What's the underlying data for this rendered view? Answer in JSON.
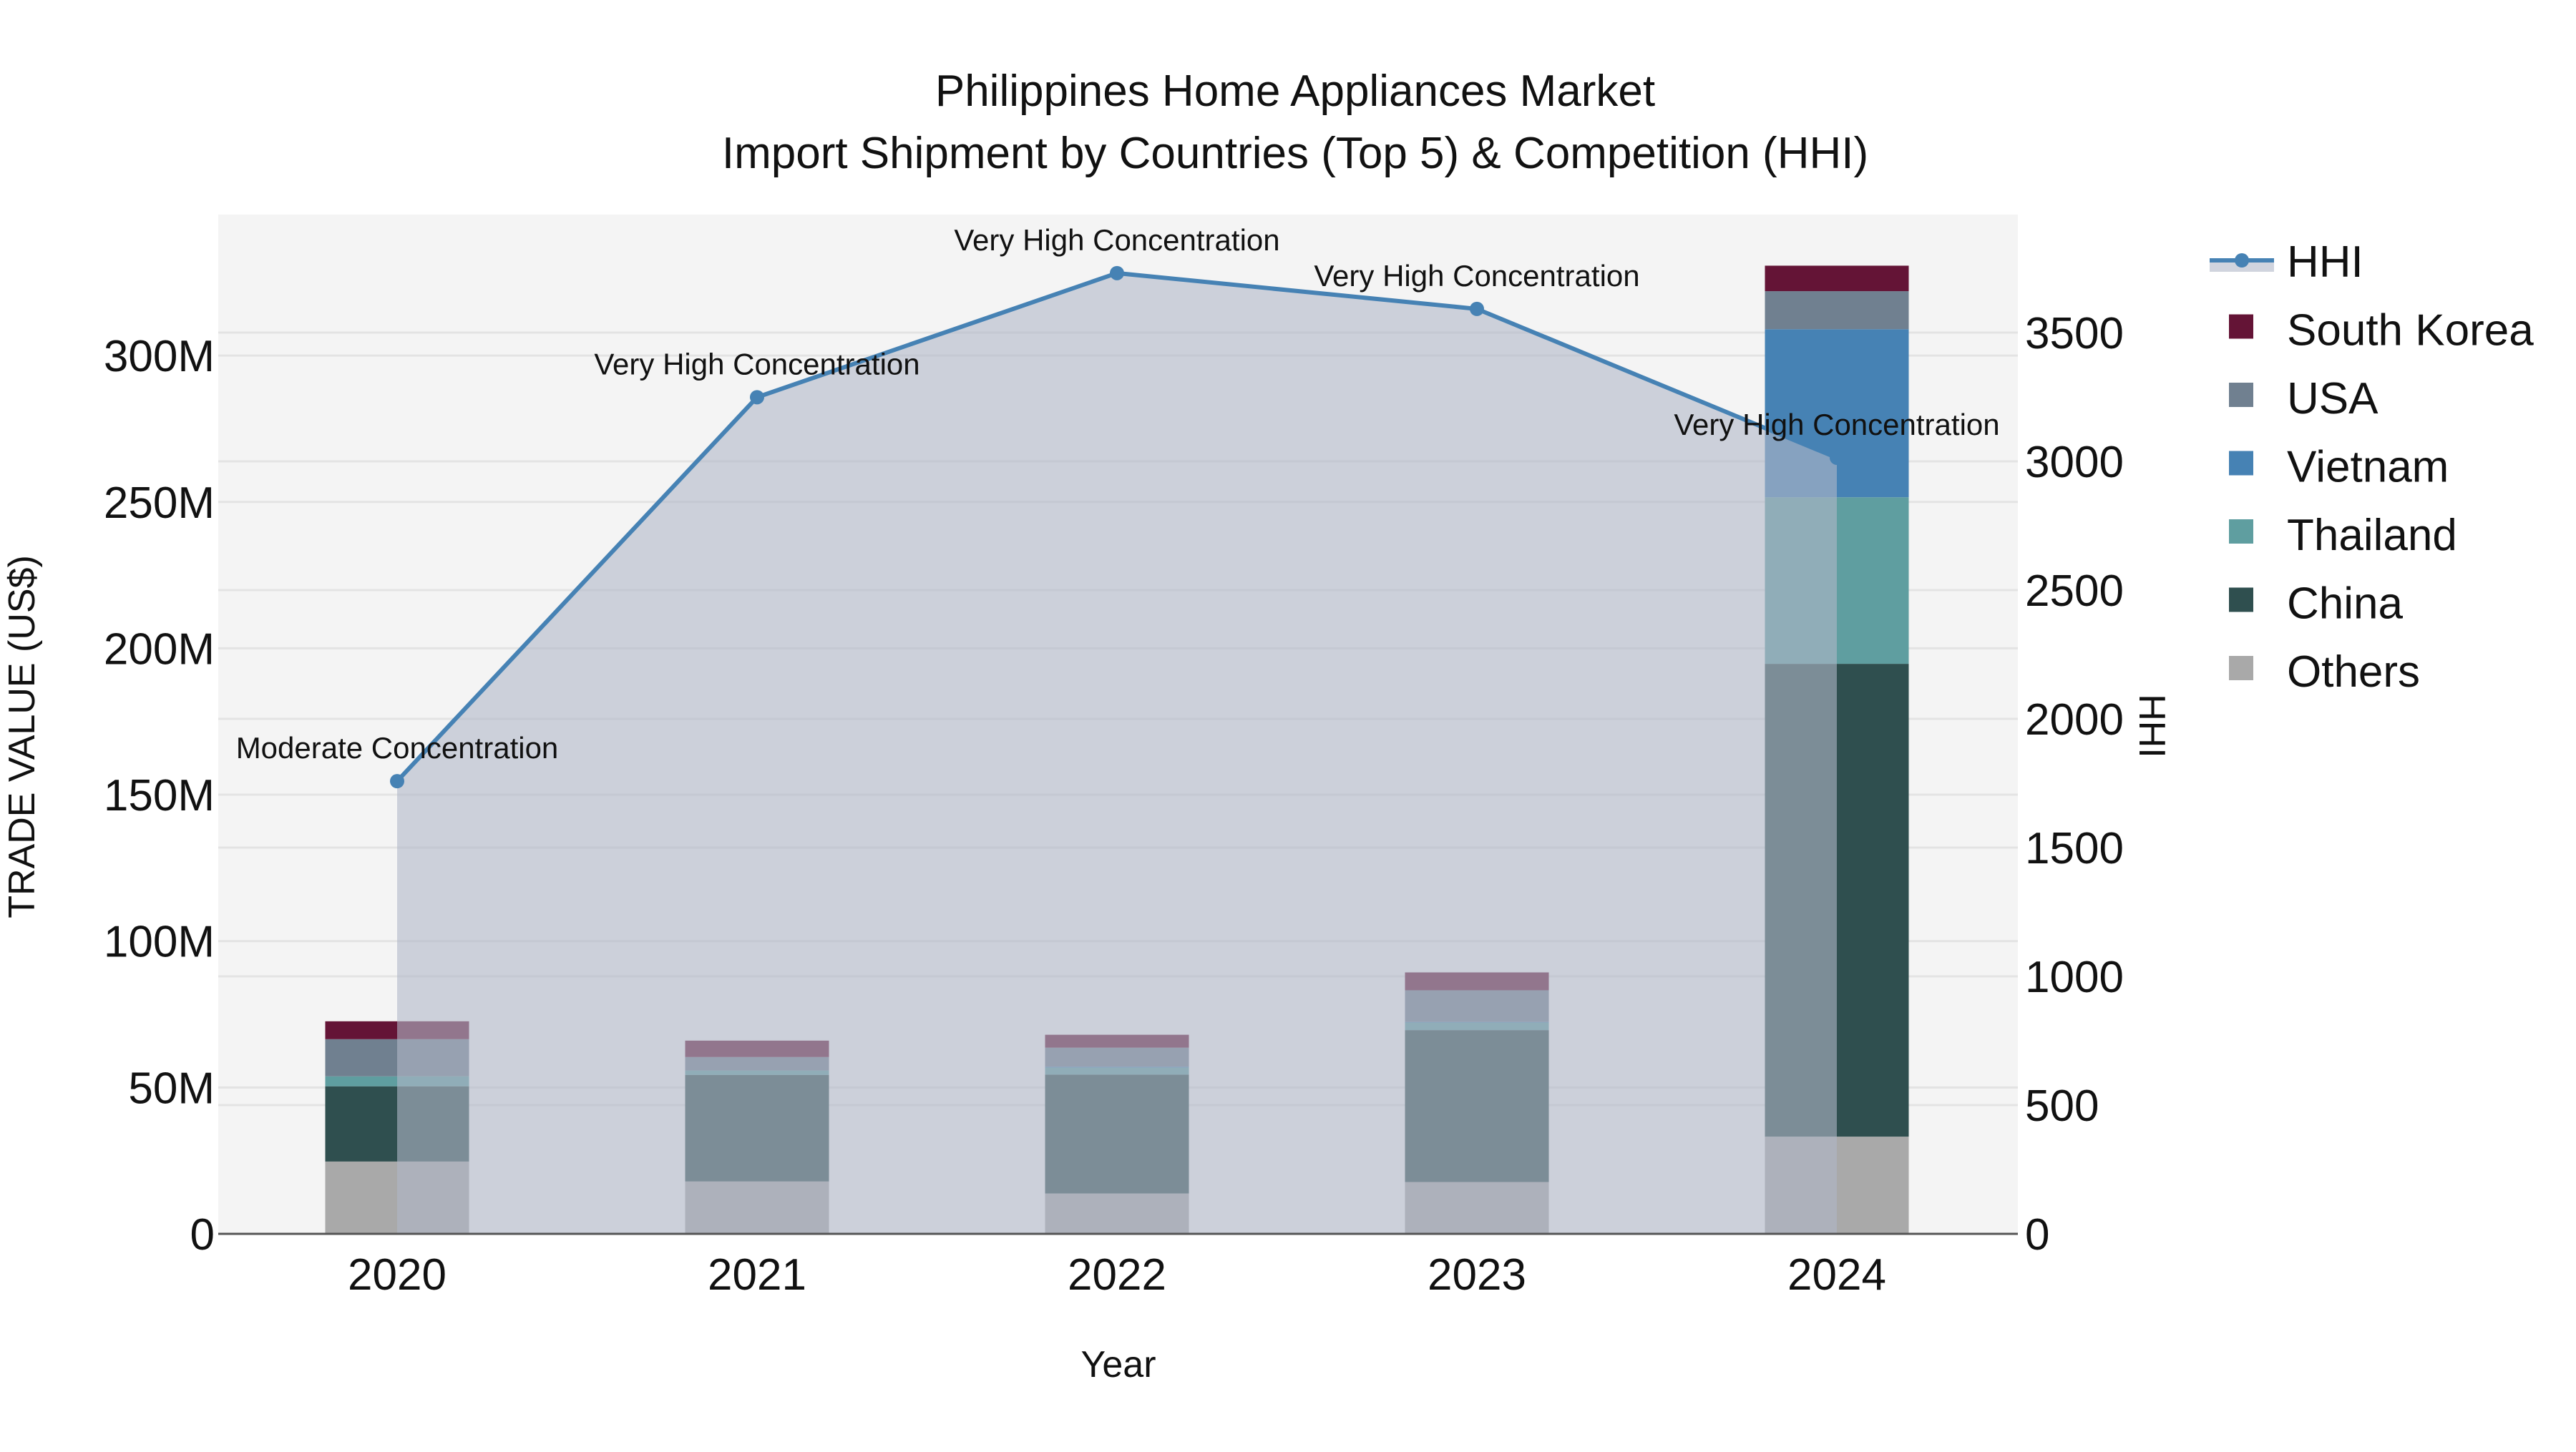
{
  "chart_data": {
    "type": "bar",
    "subtype": "stacked bar + line (secondary axis, area fill)",
    "title": "Philippines Home Appliances Market",
    "subtitle": "Import Shipment by Countries (Top 5) & Competition (HHI)",
    "xlabel": "Year",
    "ylabel": "TRADE VALUE (US$)",
    "y2label": "HHI",
    "categories": [
      "2020",
      "2021",
      "2022",
      "2023",
      "2024"
    ],
    "ylim": [
      0,
      346
    ],
    "y_unit": "M",
    "yticks": [
      0,
      50,
      100,
      150,
      200,
      250,
      300
    ],
    "ytick_labels": [
      "0",
      "50M",
      "100M",
      "150M",
      "200M",
      "250M",
      "300M"
    ],
    "y2lim": [
      0,
      3958
    ],
    "y2ticks": [
      0,
      500,
      1000,
      1500,
      2000,
      2500,
      3000,
      3500
    ],
    "y2tick_labels": [
      "0",
      "500",
      "1000",
      "1500",
      "2000",
      "2500",
      "3000",
      "3500"
    ],
    "grid": true,
    "legend_position": "right",
    "series": [
      {
        "name": "Others",
        "color": "#A9A9A9",
        "values": [
          24.7,
          17.9,
          13.8,
          17.7,
          33.2
        ]
      },
      {
        "name": "China",
        "color": "#2F4F4F",
        "values": [
          25.7,
          36.4,
          40.6,
          51.9,
          161.5
        ]
      },
      {
        "name": "Thailand",
        "color": "#5F9EA0",
        "values": [
          3.4,
          1.5,
          2.4,
          2.6,
          56.9
        ]
      },
      {
        "name": "Vietnam",
        "color": "#4682B4",
        "values": [
          0.0,
          0.0,
          0.3,
          0.2,
          57.4
        ]
      },
      {
        "name": "USA",
        "color": "#708090",
        "values": [
          12.7,
          4.6,
          6.5,
          10.8,
          13.0
        ]
      },
      {
        "name": "South Korea",
        "color": "#641436",
        "values": [
          6.1,
          5.6,
          4.4,
          6.1,
          8.7
        ]
      }
    ],
    "line_series": {
      "name": "HHI",
      "axis": "y2",
      "color": "#4682B4",
      "fill_color": "rgba(176,184,200,0.6)",
      "values": [
        1758,
        3249,
        3731,
        3592,
        3014
      ],
      "annotations": [
        "Moderate Concentration",
        "Very High Concentration",
        "Very High Concentration",
        "Very High Concentration",
        "Very High Concentration"
      ]
    }
  },
  "legend": {
    "items": [
      {
        "label": "HHI",
        "type": "line"
      },
      {
        "label": "South Korea",
        "color": "#641436"
      },
      {
        "label": "USA",
        "color": "#708090"
      },
      {
        "label": "Vietnam",
        "color": "#4682B4"
      },
      {
        "label": "Thailand",
        "color": "#5F9EA0"
      },
      {
        "label": "China",
        "color": "#2F4F4F"
      },
      {
        "label": "Others",
        "color": "#A9A9A9"
      }
    ]
  },
  "colors": {
    "plot_bg": "#F4F4F4",
    "grid": "#E3E3E3",
    "axis_line": "#555555"
  }
}
